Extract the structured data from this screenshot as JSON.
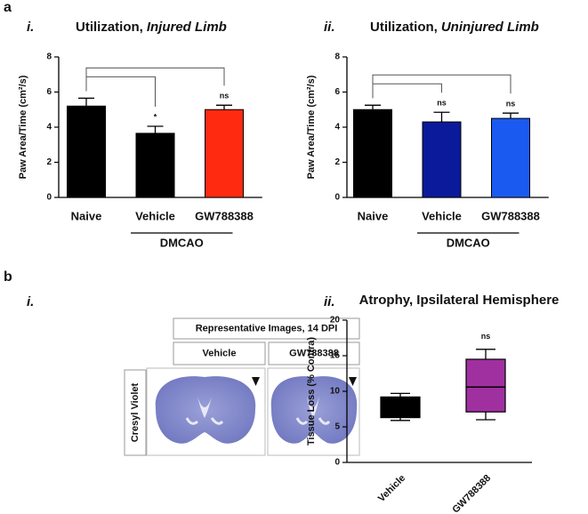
{
  "figure": {
    "panel_a": "a",
    "panel_b": "b"
  },
  "chart_data": [
    {
      "type": "bar",
      "panel": "i.",
      "title": "Utilization,",
      "title_emphasis": "Injured Limb",
      "ylabel": "Paw Area/Time (cm²/s)",
      "categories": [
        "Naive",
        "Vehicle",
        "GW788388"
      ],
      "values": [
        5.2,
        3.65,
        5.0
      ],
      "errors": [
        0.45,
        0.4,
        0.25
      ],
      "colors": [
        "#000000",
        "#a31010",
        "#ff2a10"
      ],
      "hatched": [
        false,
        true,
        false
      ],
      "value_annotations": [
        null,
        "*",
        "ns"
      ],
      "group_label": "DMCAO",
      "ylim": [
        0,
        8
      ],
      "yticks": [
        0,
        2,
        4,
        6,
        8
      ]
    },
    {
      "type": "bar",
      "panel": "ii.",
      "title": "Utilization,",
      "title_emphasis": "Uninjured Limb",
      "ylabel": "Paw Area/Time (cm²/s)",
      "categories": [
        "Naive",
        "Vehicle",
        "GW788388"
      ],
      "values": [
        5.0,
        4.3,
        4.5
      ],
      "errors": [
        0.25,
        0.55,
        0.3
      ],
      "colors": [
        "#000000",
        "#0a1a9a",
        "#1a5af0"
      ],
      "hatched": [
        false,
        false,
        false
      ],
      "value_annotations": [
        null,
        "ns",
        "ns"
      ],
      "group_label": "DMCAO",
      "ylim": [
        0,
        8
      ],
      "yticks": [
        0,
        2,
        4,
        6,
        8
      ]
    },
    {
      "type": "box",
      "panel": "ii.",
      "title": "Atrophy, Ipsilateral Hemisphere",
      "ylabel": "Tissue Loss (% Contra)",
      "categories": [
        "Vehicle",
        "GW788388"
      ],
      "min": [
        5.9,
        6.0
      ],
      "q1": [
        6.3,
        7.1
      ],
      "median": [
        7.6,
        10.6
      ],
      "q3": [
        9.2,
        14.5
      ],
      "max": [
        9.7,
        15.9
      ],
      "colors": [
        "#5a1a5a",
        "#a0309f"
      ],
      "hatched": [
        true,
        false
      ],
      "value_annotations": [
        null,
        "ns"
      ],
      "ylim": [
        0,
        20
      ],
      "yticks": [
        0,
        5,
        10,
        15,
        20
      ]
    }
  ],
  "images": {
    "panel": "i.",
    "header": "Representative Images, 14 DPI",
    "columns": [
      "Vehicle",
      "GW788388"
    ],
    "row": "Cresyl Violet"
  }
}
